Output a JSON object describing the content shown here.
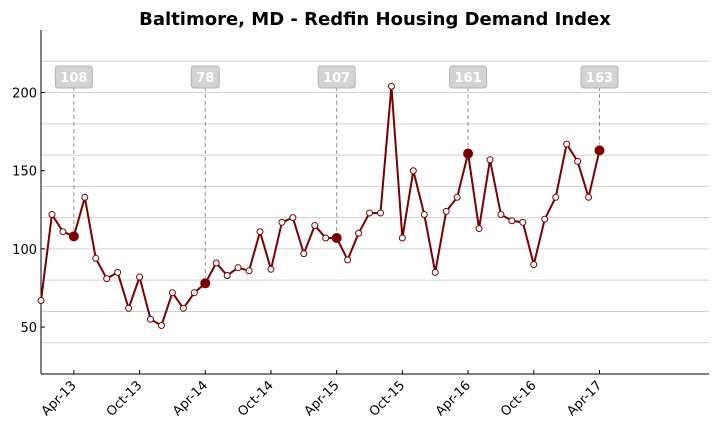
{
  "chart_data": {
    "type": "line",
    "title": "Baltimore, MD - Redfin Housing Demand Index",
    "xlabel": "",
    "ylabel": "",
    "ylim": [
      20,
      240
    ],
    "y_gridlines": [
      40,
      60,
      80,
      100,
      120,
      140,
      160,
      180,
      200,
      220
    ],
    "yticks": [
      50,
      100,
      150,
      200
    ],
    "xticks": [
      {
        "label": "Apr-13",
        "index": 3
      },
      {
        "label": "Oct-13",
        "index": 9
      },
      {
        "label": "Apr-14",
        "index": 15
      },
      {
        "label": "Oct-14",
        "index": 21
      },
      {
        "label": "Apr-15",
        "index": 27
      },
      {
        "label": "Oct-15",
        "index": 33
      },
      {
        "label": "Apr-16",
        "index": 39
      },
      {
        "label": "Oct-16",
        "index": 45
      },
      {
        "label": "Apr-17",
        "index": 51
      }
    ],
    "x_start": "Jan-13",
    "x_months_total": 61,
    "values": [
      67,
      122,
      111,
      108,
      133,
      94,
      81,
      85,
      62,
      82,
      55,
      51,
      72,
      62,
      72,
      78,
      91,
      83,
      88,
      86,
      111,
      87,
      117,
      120,
      97,
      115,
      107,
      107,
      93,
      110,
      123,
      123,
      204,
      107,
      150,
      122,
      85,
      124,
      133,
      161,
      113,
      157,
      122,
      118,
      117,
      90,
      119,
      133,
      167,
      156,
      133,
      163
    ],
    "annotations": [
      {
        "index": 3,
        "label": "108"
      },
      {
        "index": 15,
        "label": "78"
      },
      {
        "index": 27,
        "label": "107"
      },
      {
        "index": 39,
        "label": "161"
      },
      {
        "index": 51,
        "label": "163"
      }
    ],
    "grid": true,
    "colors": {
      "line": "#7a0000",
      "grid": "#d0d0d0",
      "label_bg": "#d3d3d3"
    }
  }
}
